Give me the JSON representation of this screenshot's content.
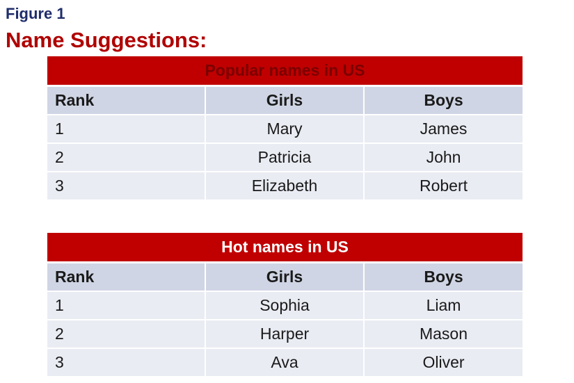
{
  "figure_label": "Figure 1",
  "title": "Name Suggestions:",
  "tables": [
    {
      "title": "Popular names in US",
      "headers": [
        "Rank",
        "Girls",
        "Boys"
      ],
      "rows": [
        [
          "1",
          "Mary",
          "James"
        ],
        [
          "2",
          "Patricia",
          "John"
        ],
        [
          "3",
          "Elizabeth",
          "Robert"
        ]
      ]
    },
    {
      "title": "Hot names in US",
      "headers": [
        "Rank",
        "Girls",
        "Boys"
      ],
      "rows": [
        [
          "1",
          "Sophia",
          "Liam"
        ],
        [
          "2",
          "Harper",
          "Mason"
        ],
        [
          "3",
          "Ava",
          "Oliver"
        ]
      ]
    }
  ],
  "colors": {
    "figure_label": "#1f2d6b",
    "title": "#b00000",
    "table_title_bg": "#c00000",
    "header_bg": "#cfd5e4",
    "row_bg": "#e9ecf3"
  }
}
